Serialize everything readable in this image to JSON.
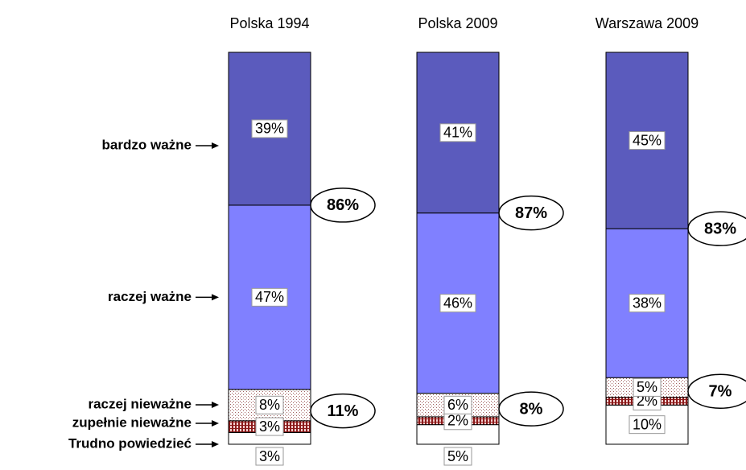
{
  "chart_data": {
    "type": "stacked-bar",
    "categories": [
      "Polska 1994",
      "Polska 2009",
      "Warszawa 2009"
    ],
    "series": [
      {
        "name": "Trudno powiedzieć",
        "color": "#ffffff",
        "values": [
          3,
          5,
          10
        ],
        "value_labels": [
          "3%",
          "5%",
          "10%"
        ]
      },
      {
        "name": "zupełnie nieważne",
        "color": "#8b1a1a",
        "values": [
          3,
          2,
          2
        ],
        "value_labels": [
          "3%",
          "2%",
          "2%"
        ]
      },
      {
        "name": "raczej nieważne",
        "color": "#c8a0a0",
        "values": [
          8,
          6,
          5
        ],
        "value_labels": [
          "8%",
          "6%",
          "5%"
        ]
      },
      {
        "name": "raczej ważne",
        "color": "#8080ff",
        "values": [
          47,
          46,
          38
        ],
        "value_labels": [
          "47%",
          "46%",
          "38%"
        ]
      },
      {
        "name": "bardzo ważne",
        "color": "#5b5bbd",
        "values": [
          39,
          41,
          45
        ],
        "value_labels": [
          "39%",
          "41%",
          "45%"
        ]
      }
    ],
    "group_totals": [
      {
        "values": [
          86,
          87,
          83
        ],
        "value_labels": [
          "86%",
          "87%",
          "83%"
        ]
      },
      {
        "values": [
          11,
          8,
          7
        ],
        "value_labels": [
          "11%",
          "8%",
          "7%"
        ]
      }
    ]
  }
}
